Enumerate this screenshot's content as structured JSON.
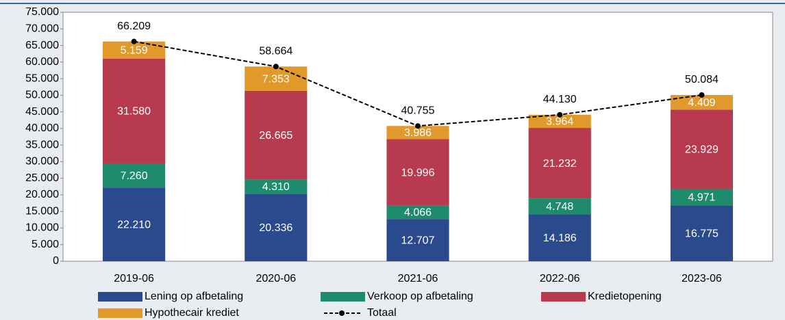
{
  "chart_data": {
    "type": "bar",
    "stacked": true,
    "categories": [
      "2019-06",
      "2020-06",
      "2021-06",
      "2022-06",
      "2023-06"
    ],
    "series": [
      {
        "name": "Lening op afbetaling",
        "color": "#2b4a8e",
        "values": [
          22210,
          20336,
          12707,
          14186,
          16775
        ],
        "value_labels": [
          "22.210",
          "20.336",
          "12.707",
          "14.186",
          "16.775"
        ]
      },
      {
        "name": "Verkoop op afbetaling",
        "color": "#1e8c6c",
        "values": [
          7260,
          4310,
          4066,
          4748,
          4971
        ],
        "value_labels": [
          "7.260",
          "4.310",
          "4.066",
          "4.748",
          "4.971"
        ]
      },
      {
        "name": "Kredietopening",
        "color": "#b83a4e",
        "values": [
          31580,
          26665,
          19996,
          21232,
          23929
        ],
        "value_labels": [
          "31.580",
          "26.665",
          "19.996",
          "21.232",
          "23.929"
        ]
      },
      {
        "name": "Hypothecair krediet",
        "color": "#e0992a",
        "values": [
          5159,
          7353,
          3986,
          3964,
          4409
        ],
        "value_labels": [
          "5.159",
          "7.353",
          "3.986",
          "3.964",
          "4.409"
        ]
      },
      {
        "name": "Totaal",
        "type": "line",
        "color": "#000000",
        "values": [
          66209,
          58664,
          40755,
          44130,
          50084
        ],
        "value_labels": [
          "66.209",
          "58.664",
          "40.755",
          "44.130",
          "50.084"
        ]
      }
    ],
    "ylim": [
      0,
      75000
    ],
    "yticks": [
      0,
      {
        "value": 5000,
        "label": "5.000"
      },
      {
        "value": 10000,
        "label": "10.000"
      },
      {
        "value": 15000,
        "label": "15.000"
      },
      {
        "value": 20000,
        "label": "20.000"
      },
      {
        "value": 25000,
        "label": "25.000"
      },
      {
        "value": 30000,
        "label": "30.000"
      },
      {
        "value": 35000,
        "label": "35.000"
      },
      {
        "value": 40000,
        "label": "40.000"
      },
      {
        "value": 45000,
        "label": "45.000"
      },
      {
        "value": 50000,
        "label": "50.000"
      },
      {
        "value": 55000,
        "label": "55.000"
      },
      {
        "value": 60000,
        "label": "60.000"
      },
      {
        "value": 65000,
        "label": "65.000"
      },
      {
        "value": 70000,
        "label": "70.000"
      },
      {
        "value": 75000,
        "label": "75.000"
      }
    ],
    "legend": "bottom"
  }
}
